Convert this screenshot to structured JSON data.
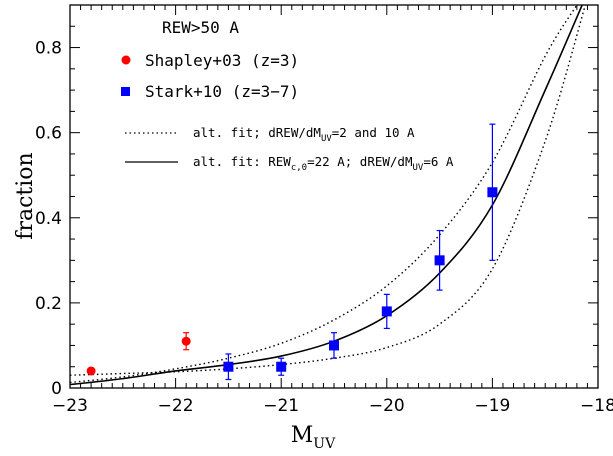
{
  "chart_data": {
    "type": "scatter",
    "xlabel": "M",
    "xlabel_sub": "UV",
    "ylabel": "fraction",
    "xlim": [
      -23,
      -18
    ],
    "ylim": [
      0,
      0.9
    ],
    "x_ticks": [
      -23,
      -22,
      -21,
      -20,
      -19,
      -18
    ],
    "x_tick_labels": [
      "−23",
      "−22",
      "−21",
      "−20",
      "−19",
      "−18"
    ],
    "y_ticks": [
      0,
      0.2,
      0.4,
      0.6,
      0.8
    ],
    "y_tick_labels": [
      "0",
      "0.2",
      "0.4",
      "0.6",
      "0.8"
    ],
    "grid": false,
    "legend_position": "top-left",
    "legend_title": "REW>50 A",
    "series": [
      {
        "name": "Shapley+03 (z=3)",
        "marker": "circle",
        "color": "#ff0000",
        "x": [
          -22.8,
          -21.9
        ],
        "y": [
          0.04,
          0.11
        ],
        "y_err": [
          0.006,
          0.02
        ]
      },
      {
        "name": "Stark+10 (z=3−7)",
        "marker": "square",
        "color": "#0000ff",
        "x": [
          -21.5,
          -21.0,
          -20.5,
          -20.0,
          -19.5,
          -19.0
        ],
        "y": [
          0.05,
          0.05,
          0.1,
          0.18,
          0.3,
          0.46
        ],
        "y_err_low": [
          0.03,
          0.02,
          0.03,
          0.04,
          0.07,
          0.16
        ],
        "y_err_high": [
          0.03,
          0.02,
          0.03,
          0.04,
          0.07,
          0.16
        ]
      }
    ],
    "curves": [
      {
        "name": "alt. fit; dREW/dM_UV=2 and 10 A",
        "label_parts": [
          "alt. fit; dREW/dM",
          "UV",
          "=2 and 10 A"
        ],
        "style": "dotted",
        "color": "#000000",
        "lines": [
          {
            "x": [
              -23.0,
              -22.5,
              -22.0,
              -21.5,
              -21.0,
              -20.5,
              -20.0,
              -19.5,
              -19.0,
              -18.5,
              -18.2
            ],
            "y": [
              0.013,
              0.026,
              0.045,
              0.07,
              0.105,
              0.16,
              0.24,
              0.36,
              0.53,
              0.78,
              0.9
            ]
          },
          {
            "x": [
              -23.0,
              -22.5,
              -22.0,
              -21.5,
              -21.0,
              -20.5,
              -20.0,
              -19.5,
              -19.0,
              -18.5,
              -18.12
            ],
            "y": [
              0.03,
              0.034,
              0.038,
              0.045,
              0.055,
              0.07,
              0.095,
              0.15,
              0.28,
              0.58,
              0.9
            ]
          }
        ]
      },
      {
        "name": "alt. fit: REW_c,0=22 A; dREW/dM_UV=6 A",
        "label_parts": [
          "alt. fit: REW",
          "c,0",
          "=22 A; dREW/dM",
          "UV",
          "=6 A"
        ],
        "style": "solid",
        "color": "#000000",
        "lines": [
          {
            "x": [
              -23.0,
              -22.5,
              -22.0,
              -21.5,
              -21.0,
              -20.5,
              -20.0,
              -19.5,
              -19.0,
              -18.5,
              -18.15
            ],
            "y": [
              0.008,
              0.022,
              0.04,
              0.055,
              0.075,
              0.11,
              0.17,
              0.27,
              0.43,
              0.7,
              0.9
            ]
          }
        ]
      }
    ]
  }
}
